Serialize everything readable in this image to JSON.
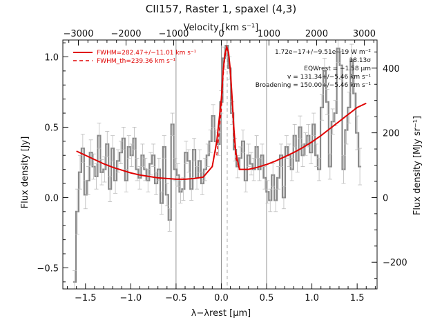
{
  "chart_data": {
    "type": "line",
    "title": "CII157, Raster 1, spaxel (4,3)",
    "xlabel": "λ−λrest [μm]",
    "ylabel": "Flux density [Jy]",
    "top_xlabel": "Velocity [km s⁻¹]",
    "right_ylabel": "Flux density [MJy sr⁻¹]",
    "xlim": [
      -1.75,
      1.72
    ],
    "ylim": [
      -0.65,
      1.12
    ],
    "x_ticks": [
      -1.5,
      -1.0,
      -0.5,
      0.0,
      0.5,
      1.0,
      1.5
    ],
    "x_tick_labels": [
      "−1.5",
      "−1.0",
      "−0.5",
      "0.0",
      "0.5",
      "1.0",
      "1.5"
    ],
    "y_ticks": [
      -0.5,
      0.0,
      0.5,
      1.0
    ],
    "y_tick_labels": [
      "−0.5",
      "0.0",
      "0.5",
      "1.0"
    ],
    "top_ticks": [
      -3000,
      -2000,
      -1000,
      0,
      1000,
      2000,
      3000
    ],
    "top_tick_labels": [
      "−3000",
      "−2000",
      "−1000",
      "0",
      "1000",
      "2000",
      "3000"
    ],
    "right_ticks": [
      -200,
      0,
      200,
      400
    ],
    "right_tick_labels": [
      "−200",
      "0",
      "200",
      "400"
    ],
    "vertical_lines_x": [
      -0.5,
      0.0,
      0.5
    ],
    "line_center_x": 0.065,
    "legend": [
      {
        "label": "FWHM=282.47+/−11.01 km s⁻¹",
        "style": "solid",
        "color": "#e00000"
      },
      {
        "label": "FWHM_th=239.36 km s⁻¹",
        "style": "dashed",
        "color": "#e00000"
      }
    ],
    "annotations": [
      "1.72e−17+/−9.51e−19 W m⁻²",
      "18.13σ",
      "EQWrest = −1.58 μm",
      "v = 131.34+/−5.46 km s⁻¹",
      "Broadening = 150.00+/−5.46 km s⁻¹"
    ],
    "series": [
      {
        "name": "",
        "style": "histogram",
        "color": "#888888",
        "x": [
          -1.62,
          -1.59,
          -1.56,
          -1.53,
          -1.5,
          -1.47,
          -1.44,
          -1.41,
          -1.38,
          -1.35,
          -1.32,
          -1.29,
          -1.26,
          -1.23,
          -1.2,
          -1.17,
          -1.14,
          -1.11,
          -1.08,
          -1.05,
          -1.02,
          -0.99,
          -0.96,
          -0.93,
          -0.9,
          -0.87,
          -0.84,
          -0.81,
          -0.78,
          -0.75,
          -0.72,
          -0.69,
          -0.66,
          -0.63,
          -0.6,
          -0.57,
          -0.54,
          -0.51,
          -0.48,
          -0.45,
          -0.42,
          -0.39,
          -0.36,
          -0.33,
          -0.3,
          -0.27,
          -0.24,
          -0.21,
          -0.18,
          -0.15,
          -0.12,
          -0.09,
          -0.06,
          -0.03,
          0.0,
          0.03,
          0.06,
          0.09,
          0.12,
          0.15,
          0.18,
          0.21,
          0.24,
          0.27,
          0.3,
          0.33,
          0.36,
          0.39,
          0.42,
          0.45,
          0.48,
          0.51,
          0.54,
          0.57,
          0.6,
          0.63,
          0.66,
          0.69,
          0.72,
          0.75,
          0.78,
          0.81,
          0.84,
          0.87,
          0.9,
          0.93,
          0.96,
          0.99,
          1.02,
          1.05,
          1.08,
          1.11,
          1.14,
          1.17,
          1.2,
          1.23,
          1.26,
          1.29,
          1.32,
          1.35,
          1.38,
          1.41,
          1.44,
          1.47,
          1.5,
          1.53
        ],
        "values": [
          -0.6,
          -0.1,
          0.18,
          0.35,
          0.02,
          0.12,
          0.32,
          0.22,
          0.15,
          0.44,
          0.18,
          0.2,
          0.38,
          0.06,
          0.35,
          0.12,
          0.26,
          0.32,
          0.42,
          0.12,
          0.36,
          0.3,
          0.42,
          0.2,
          0.14,
          0.3,
          0.2,
          0.12,
          0.24,
          0.3,
          0.1,
          0.2,
          -0.04,
          0.36,
          0.02,
          -0.16,
          0.52,
          0.2,
          0.16,
          0.04,
          0.06,
          0.32,
          0.26,
          0.06,
          0.34,
          0.14,
          0.26,
          0.1,
          0.2,
          0.3,
          0.4,
          0.58,
          0.4,
          0.38,
          0.68,
          0.99,
          1.08,
          0.92,
          0.6,
          0.34,
          0.22,
          0.28,
          0.4,
          0.12,
          0.3,
          0.24,
          0.2,
          0.36,
          0.2,
          0.3,
          0.14,
          0.04,
          -0.02,
          0.16,
          -0.02,
          0.14,
          0.3,
          0.0,
          0.36,
          0.3,
          0.2,
          0.44,
          0.26,
          0.5,
          0.3,
          0.38,
          0.44,
          0.32,
          0.52,
          0.3,
          0.2,
          0.64,
          0.9,
          0.68,
          0.22,
          0.54,
          0.6,
          1.06,
          0.94,
          0.2,
          0.48,
          0.64,
          0.98,
          0.74,
          0.46,
          0.22
        ],
        "errors": [
          0.08,
          0.16,
          0.12,
          0.1,
          0.1,
          0.1,
          0.09,
          0.09,
          0.09,
          0.09,
          0.09,
          0.09,
          0.09,
          0.09,
          0.09,
          0.09,
          0.08,
          0.08,
          0.08,
          0.08,
          0.08,
          0.08,
          0.08,
          0.08,
          0.08,
          0.08,
          0.08,
          0.08,
          0.08,
          0.08,
          0.08,
          0.08,
          0.08,
          0.08,
          0.08,
          0.08,
          0.08,
          0.08,
          0.08,
          0.08,
          0.08,
          0.08,
          0.08,
          0.08,
          0.08,
          0.08,
          0.08,
          0.08,
          0.08,
          0.08,
          0.08,
          0.08,
          0.08,
          0.08,
          0.08,
          0.08,
          0.08,
          0.08,
          0.08,
          0.08,
          0.08,
          0.08,
          0.08,
          0.08,
          0.08,
          0.08,
          0.08,
          0.08,
          0.08,
          0.08,
          0.08,
          0.08,
          0.08,
          0.08,
          0.08,
          0.08,
          0.08,
          0.08,
          0.08,
          0.08,
          0.08,
          0.08,
          0.08,
          0.08,
          0.08,
          0.08,
          0.08,
          0.08,
          0.08,
          0.08,
          0.08,
          0.09,
          0.09,
          0.09,
          0.09,
          0.09,
          0.09,
          0.1,
          0.1,
          0.1,
          0.1,
          0.11,
          0.11,
          0.12,
          0.12,
          0.13
        ]
      },
      {
        "name": "",
        "style": "solid",
        "color": "#e00000",
        "x": [
          -1.6,
          -1.5,
          -1.4,
          -1.3,
          -1.2,
          -1.1,
          -1.0,
          -0.9,
          -0.8,
          -0.7,
          -0.6,
          -0.5,
          -0.4,
          -0.3,
          -0.2,
          -0.1,
          -0.05,
          0.0,
          0.02,
          0.04,
          0.06,
          0.08,
          0.1,
          0.12,
          0.14,
          0.16,
          0.2,
          0.3,
          0.4,
          0.5,
          0.6,
          0.7,
          0.8,
          0.9,
          1.0,
          1.1,
          1.2,
          1.3,
          1.4,
          1.5,
          1.6
        ],
        "values": [
          0.33,
          0.3,
          0.27,
          0.24,
          0.215,
          0.195,
          0.175,
          0.16,
          0.15,
          0.14,
          0.135,
          0.13,
          0.13,
          0.135,
          0.145,
          0.22,
          0.4,
          0.7,
          0.9,
          1.02,
          1.07,
          1.03,
          0.9,
          0.7,
          0.48,
          0.32,
          0.2,
          0.2,
          0.215,
          0.235,
          0.26,
          0.29,
          0.32,
          0.355,
          0.395,
          0.44,
          0.49,
          0.54,
          0.59,
          0.64,
          0.67
        ]
      },
      {
        "name": "",
        "style": "dashed",
        "color": "#e00000",
        "x": [
          -0.05,
          0.0,
          0.02,
          0.04,
          0.06,
          0.08,
          0.1,
          0.12,
          0.14,
          0.16,
          0.2
        ],
        "values": [
          0.3,
          0.62,
          0.86,
          1.0,
          1.06,
          1.02,
          0.88,
          0.66,
          0.42,
          0.28,
          0.2
        ]
      }
    ]
  }
}
